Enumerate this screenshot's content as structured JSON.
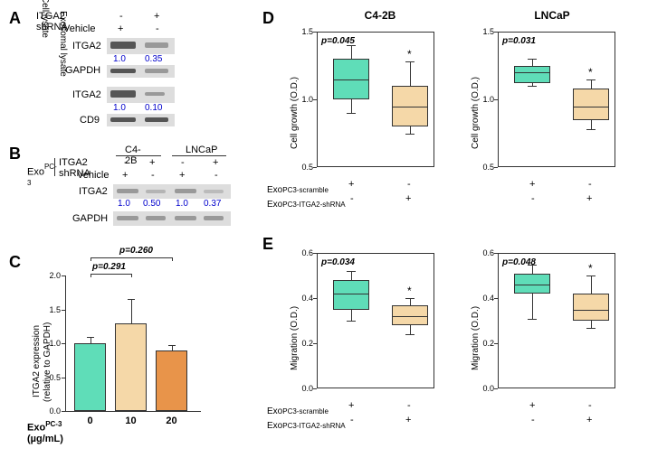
{
  "panelA": {
    "label": "A",
    "row1": {
      "label": "ITGA2 shRNA",
      "minus": "-",
      "plus": "+"
    },
    "row2": {
      "label": "Vehicle",
      "plus": "+",
      "minus": "-"
    },
    "blot1": {
      "label": "ITGA2",
      "vals": [
        "1.0",
        "0.35"
      ]
    },
    "blot2": {
      "label": "GAPDH"
    },
    "blot3": {
      "label": "ITGA2",
      "vals": [
        "1.0",
        "0.10"
      ]
    },
    "blot4": {
      "label": "CD9"
    },
    "side1": "Cell lysate",
    "side2": "Exosomal lysate"
  },
  "panelB": {
    "label": "B",
    "header1": "C4-2B",
    "header2": "LNCaP",
    "leftLabel": "Exo",
    "leftSup": "PC-3",
    "row1": {
      "label": "ITGA2 shRNA",
      "vals": [
        "-",
        "+",
        "-",
        "+"
      ]
    },
    "row2": {
      "label": "Vehicle",
      "vals": [
        "+",
        "-",
        "+",
        "-"
      ]
    },
    "blot1": {
      "label": "ITGA2",
      "vals": [
        "1.0",
        "0.50",
        "1.0",
        "0.37"
      ]
    },
    "blot2": {
      "label": "GAPDH"
    }
  },
  "panelC": {
    "label": "C",
    "ylabel": "ITGA2 expression",
    "ylabel2": "(relative to GAPDH)",
    "xlabel": "Exo",
    "xsup": "PC-3",
    "xunit": "(µg/mL)",
    "xticks": [
      "0",
      "10",
      "20"
    ],
    "yticks": [
      "0.0",
      "0.5",
      "1.0",
      "1.5",
      "2.0"
    ],
    "pval1": "p=0.291",
    "pval2": "p=0.260",
    "bars": [
      {
        "val": 1.0,
        "err": 0.1,
        "color": "#5fddb8"
      },
      {
        "val": 1.3,
        "err": 0.35,
        "color": "#f5d8a8"
      },
      {
        "val": 0.9,
        "err": 0.07,
        "color": "#e8944a"
      }
    ]
  },
  "panelD": {
    "label": "D",
    "title1": "C4-2B",
    "title2": "LNCaP",
    "ylabel": "Cell growth (O.D.)",
    "yticks": [
      "0.5",
      "1.0",
      "1.5"
    ],
    "chart1": {
      "pval": "p=0.045",
      "boxes": [
        {
          "q1": 1.0,
          "q3": 1.3,
          "median": 1.15,
          "low": 0.9,
          "high": 1.4,
          "color": "#5fddb8"
        },
        {
          "q1": 0.8,
          "q3": 1.1,
          "median": 0.95,
          "low": 0.75,
          "high": 1.28,
          "color": "#f5d8a8"
        }
      ]
    },
    "chart2": {
      "pval": "p=0.031",
      "boxes": [
        {
          "q1": 1.12,
          "q3": 1.25,
          "median": 1.2,
          "low": 1.1,
          "high": 1.3,
          "color": "#5fddb8"
        },
        {
          "q1": 0.85,
          "q3": 1.08,
          "median": 0.95,
          "low": 0.78,
          "high": 1.15,
          "color": "#f5d8a8"
        }
      ]
    },
    "legend1": {
      "label": "Exo",
      "sup": "PC3-scramble"
    },
    "legend2": {
      "label": "Exo",
      "sup": "PC3-ITGA2-shRNA"
    }
  },
  "panelE": {
    "label": "E",
    "ylabel": "Migration (O.D.)",
    "yticks": [
      "0.0",
      "0.2",
      "0.4",
      "0.6"
    ],
    "chart1": {
      "pval": "p=0.034",
      "boxes": [
        {
          "q1": 0.35,
          "q3": 0.48,
          "median": 0.42,
          "low": 0.3,
          "high": 0.52,
          "color": "#5fddb8"
        },
        {
          "q1": 0.28,
          "q3": 0.37,
          "median": 0.32,
          "low": 0.24,
          "high": 0.4,
          "color": "#f5d8a8"
        }
      ]
    },
    "chart2": {
      "pval": "p=0.048",
      "boxes": [
        {
          "q1": 0.42,
          "q3": 0.51,
          "median": 0.46,
          "low": 0.31,
          "high": 0.55,
          "color": "#5fddb8"
        },
        {
          "q1": 0.3,
          "q3": 0.42,
          "median": 0.35,
          "low": 0.27,
          "high": 0.5,
          "color": "#f5d8a8"
        }
      ]
    },
    "legend1": {
      "label": "Exo",
      "sup": "PC3-scramble"
    },
    "legend2": {
      "label": "Exo",
      "sup": "PC3-ITGA2-shRNA"
    }
  }
}
